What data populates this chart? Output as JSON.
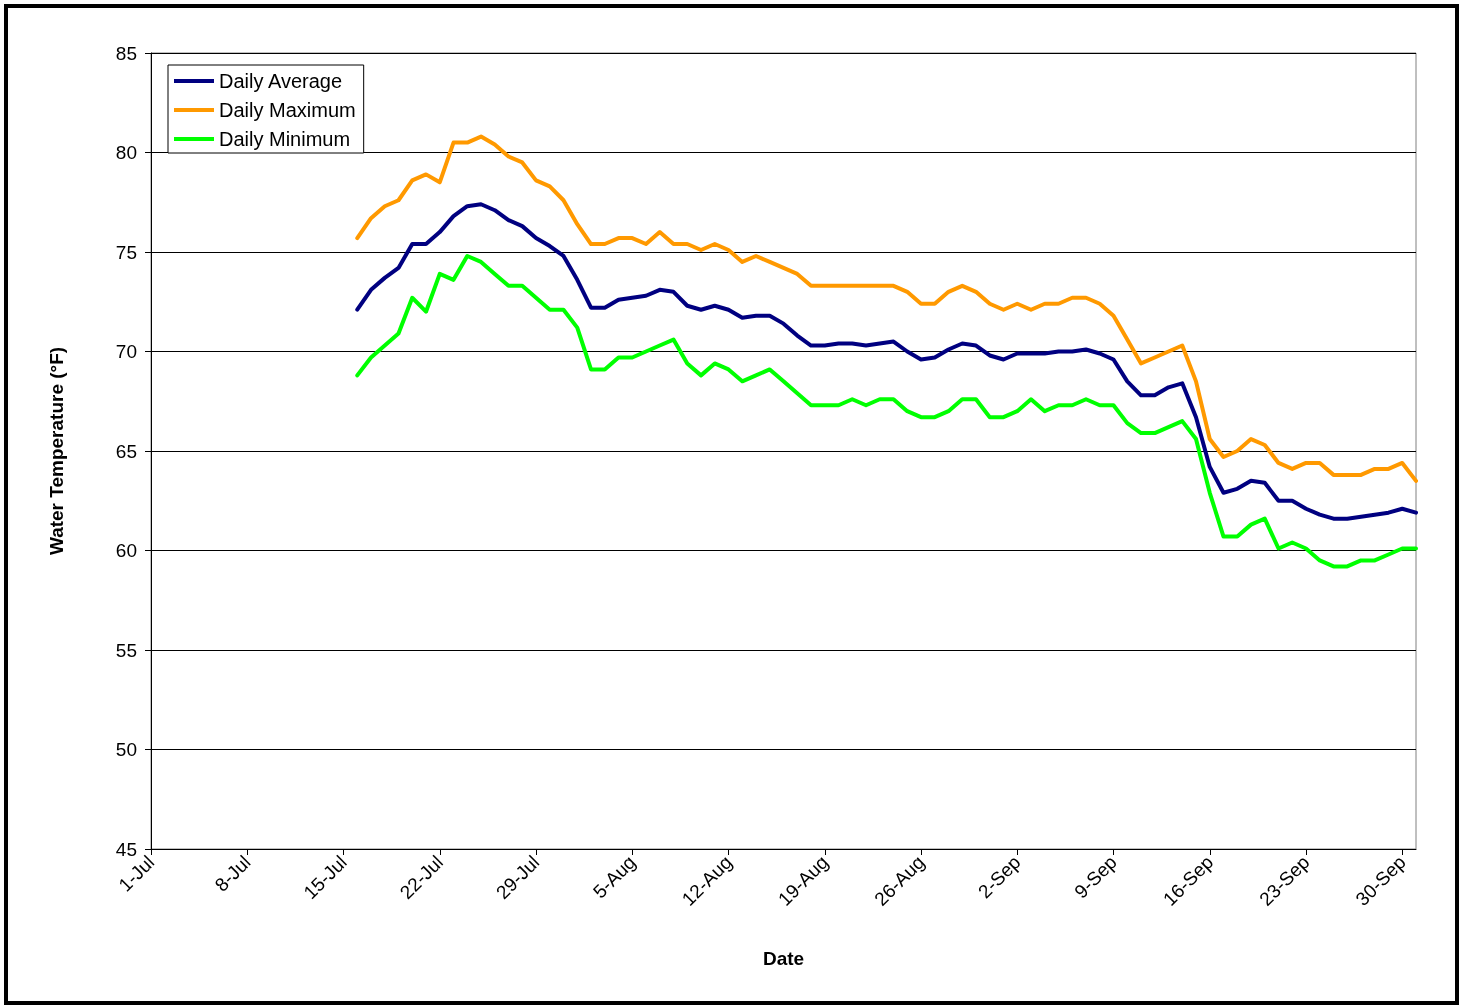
{
  "chart_data": {
    "type": "line",
    "xlabel": "Date",
    "ylabel": "Water Temperature (°F)",
    "x": [
      "--07-16",
      "--07-17",
      "--07-18",
      "--07-19",
      "--07-20",
      "--07-21",
      "--07-22",
      "--07-23",
      "--07-24",
      "--07-25",
      "--07-26",
      "--07-27",
      "--07-28",
      "--07-29",
      "--07-30",
      "--07-31",
      "--08-01",
      "--08-02",
      "--08-03",
      "--08-04",
      "--08-05",
      "--08-06",
      "--08-07",
      "--08-08",
      "--08-09",
      "--08-10",
      "--08-11",
      "--08-12",
      "--08-13",
      "--08-14",
      "--08-15",
      "--08-16",
      "--08-17",
      "--08-18",
      "--08-19",
      "--08-20",
      "--08-21",
      "--08-22",
      "--08-23",
      "--08-24",
      "--08-25",
      "--08-26",
      "--08-27",
      "--08-28",
      "--08-29",
      "--08-30",
      "--08-31",
      "--09-01",
      "--09-02",
      "--09-03",
      "--09-04",
      "--09-05",
      "--09-06",
      "--09-07",
      "--09-08",
      "--09-09",
      "--09-10",
      "--09-11",
      "--09-12",
      "--09-13",
      "--09-14",
      "--09-15",
      "--09-16",
      "--09-17",
      "--09-18",
      "--09-19",
      "--09-20",
      "--09-21",
      "--09-22",
      "--09-23",
      "--09-24",
      "--09-25",
      "--09-26",
      "--09-27",
      "--09-28",
      "--09-29",
      "--09-30",
      "--10-01"
    ],
    "series": [
      {
        "name": "Daily Average",
        "color": "#000080",
        "values": [
          72.1,
          73.1,
          73.7,
          74.2,
          75.4,
          75.4,
          76.0,
          76.8,
          77.3,
          77.4,
          77.1,
          76.6,
          76.3,
          75.7,
          75.3,
          74.8,
          73.6,
          72.2,
          72.2,
          72.6,
          72.7,
          72.8,
          73.1,
          73.0,
          72.3,
          72.1,
          72.3,
          72.1,
          71.7,
          71.8,
          71.8,
          71.4,
          70.8,
          70.3,
          70.3,
          70.4,
          70.4,
          70.3,
          70.4,
          70.5,
          70.0,
          69.6,
          69.7,
          70.1,
          70.4,
          70.3,
          69.8,
          69.6,
          69.9,
          69.9,
          69.9,
          70.0,
          70.0,
          70.1,
          69.9,
          69.6,
          68.5,
          67.8,
          67.8,
          68.2,
          68.4,
          66.7,
          64.2,
          62.9,
          63.1,
          63.5,
          63.4,
          62.5,
          62.5,
          62.1,
          61.8,
          61.6,
          61.6,
          61.7,
          61.8,
          61.9,
          62.1,
          61.9
        ]
      },
      {
        "name": "Daily Maximum",
        "color": "#ff9900",
        "values": [
          75.7,
          76.7,
          77.3,
          77.6,
          78.6,
          78.9,
          78.5,
          80.5,
          80.5,
          80.8,
          80.4,
          79.8,
          79.5,
          78.6,
          78.3,
          77.6,
          76.4,
          75.4,
          75.4,
          75.7,
          75.7,
          75.4,
          76.0,
          75.4,
          75.4,
          75.1,
          75.4,
          75.1,
          74.5,
          74.8,
          74.5,
          74.2,
          73.9,
          73.3,
          73.3,
          73.3,
          73.3,
          73.3,
          73.3,
          73.3,
          73.0,
          72.4,
          72.4,
          73.0,
          73.3,
          73.0,
          72.4,
          72.1,
          72.4,
          72.1,
          72.4,
          72.4,
          72.7,
          72.7,
          72.4,
          71.8,
          70.6,
          69.4,
          69.7,
          70.0,
          70.3,
          68.5,
          65.6,
          64.7,
          65.0,
          65.6,
          65.3,
          64.4,
          64.1,
          64.4,
          64.4,
          63.8,
          63.8,
          63.8,
          64.1,
          64.1,
          64.4,
          63.5
        ]
      },
      {
        "name": "Daily Minimum",
        "color": "#00ff00",
        "values": [
          68.8,
          69.7,
          70.3,
          70.9,
          72.7,
          72.0,
          73.9,
          73.6,
          74.8,
          74.5,
          73.9,
          73.3,
          73.3,
          72.7,
          72.1,
          72.1,
          71.2,
          69.1,
          69.1,
          69.7,
          69.7,
          70.0,
          70.3,
          70.6,
          69.4,
          68.8,
          69.4,
          69.1,
          68.5,
          68.8,
          69.1,
          68.5,
          67.9,
          67.3,
          67.3,
          67.3,
          67.6,
          67.3,
          67.6,
          67.6,
          67.0,
          66.7,
          66.7,
          67.0,
          67.6,
          67.6,
          66.7,
          66.7,
          67.0,
          67.6,
          67.0,
          67.3,
          67.3,
          67.6,
          67.3,
          67.3,
          66.4,
          65.9,
          65.9,
          66.2,
          66.5,
          65.6,
          62.9,
          60.7,
          60.7,
          61.3,
          61.6,
          60.1,
          60.4,
          60.1,
          59.5,
          59.2,
          59.2,
          59.5,
          59.5,
          59.8,
          60.1,
          60.1
        ]
      }
    ],
    "xlim": [
      "--07-01",
      "--10-01"
    ],
    "xticks": [
      {
        "value": "--07-01",
        "label": "1-Jul"
      },
      {
        "value": "--07-08",
        "label": "8-Jul"
      },
      {
        "value": "--07-15",
        "label": "15-Jul"
      },
      {
        "value": "--07-22",
        "label": "22-Jul"
      },
      {
        "value": "--07-29",
        "label": "29-Jul"
      },
      {
        "value": "--08-05",
        "label": "5-Aug"
      },
      {
        "value": "--08-12",
        "label": "12-Aug"
      },
      {
        "value": "--08-19",
        "label": "19-Aug"
      },
      {
        "value": "--08-26",
        "label": "26-Aug"
      },
      {
        "value": "--09-02",
        "label": "2-Sep"
      },
      {
        "value": "--09-09",
        "label": "9-Sep"
      },
      {
        "value": "--09-16",
        "label": "16-Sep"
      },
      {
        "value": "--09-23",
        "label": "23-Sep"
      },
      {
        "value": "--09-30",
        "label": "30-Sep"
      }
    ],
    "ylim": [
      45,
      85
    ],
    "yticks": [
      45,
      50,
      55,
      60,
      65,
      70,
      75,
      80,
      85
    ],
    "grid": "y",
    "legend": "top left",
    "marker": "none",
    "line_style": "solid"
  }
}
